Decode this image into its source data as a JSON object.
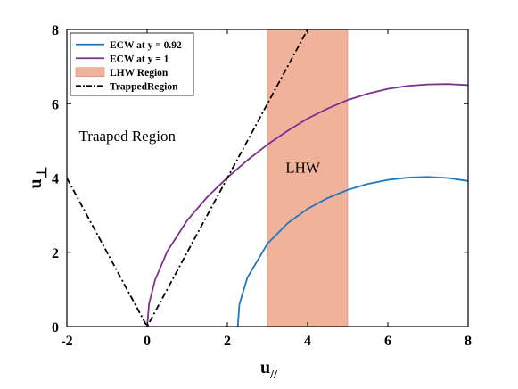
{
  "chart_data": {
    "type": "line",
    "xlabel": "u//",
    "ylabel": "u⊥",
    "xlim": [
      -2,
      8
    ],
    "ylim": [
      0,
      8
    ],
    "xticks": [
      "-2",
      "0",
      "2",
      "4",
      "6",
      "8"
    ],
    "yticks": [
      "0",
      "2",
      "4",
      "6",
      "8"
    ],
    "grid": false,
    "legend_position": "top-left",
    "legend": [
      {
        "name": "ECW at y = 0.92",
        "style": "line",
        "color": "#1f77c0"
      },
      {
        "name": "ECW at y = 1",
        "style": "line",
        "color": "#7e2f8e"
      },
      {
        "name": "LHW Region",
        "style": "patch",
        "color": "#f0b29a"
      },
      {
        "name": "TrappedRegion",
        "style": "dashdot",
        "color": "#000000"
      }
    ],
    "series": [
      {
        "name": "ECW at y = 0.92",
        "color": "#1f77c0",
        "x": [
          2.26,
          2.3,
          2.5,
          3.0,
          3.5,
          4.0,
          4.5,
          5.0,
          5.5,
          6.0,
          6.5,
          7.0,
          7.5,
          8.0
        ],
        "y": [
          0.0,
          0.6,
          1.32,
          2.23,
          2.78,
          3.17,
          3.46,
          3.68,
          3.84,
          3.95,
          4.01,
          4.03,
          4.0,
          3.92
        ]
      },
      {
        "name": "ECW at y = 1",
        "color": "#7e2f8e",
        "x": [
          0.0,
          0.05,
          0.2,
          0.5,
          1.0,
          1.5,
          2.0,
          2.5,
          3.0,
          3.5,
          4.0,
          4.5,
          5.0,
          5.5,
          6.0,
          6.5,
          7.0,
          7.5,
          8.0
        ],
        "y": [
          0.0,
          0.62,
          1.26,
          2.02,
          2.86,
          3.49,
          4.01,
          4.48,
          4.9,
          5.27,
          5.6,
          5.87,
          6.1,
          6.27,
          6.4,
          6.48,
          6.52,
          6.53,
          6.5
        ]
      },
      {
        "name": "TrappedRegion",
        "color": "#000000",
        "dash": "dashdot",
        "x": [
          -2,
          0,
          4.0
        ],
        "y": [
          4,
          0,
          8.0
        ]
      }
    ],
    "regions": [
      {
        "name": "LHW Region",
        "x_from": 3,
        "x_to": 5,
        "color": "#f0b29a"
      }
    ],
    "annotations": [
      {
        "text": "Traaped Region",
        "x": -1.7,
        "y": 5.0
      },
      {
        "text": "LHW",
        "x": 3.45,
        "y": 4.15
      }
    ]
  }
}
